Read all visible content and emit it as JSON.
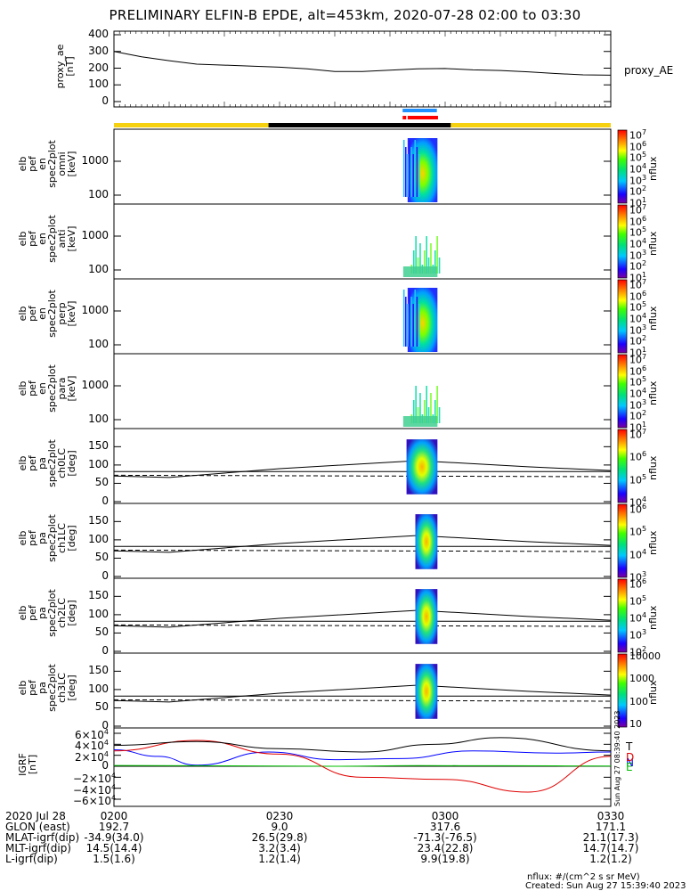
{
  "title": "PRELIMINARY ELFIN-B EPDE, alt=453km, 2020-07-28 02:00 to 03:30",
  "panels": [
    {
      "ylabel": "proxy_ae\n[nT]",
      "right_label": "proxy_AE",
      "ticks": [
        "400",
        "300",
        "200",
        "100",
        "0"
      ]
    },
    {
      "ylabel": "elb\npef\nen\nspec2plot\nomni\n[keV]",
      "ticks": [
        "1000",
        "100"
      ],
      "cbar_label": "nflux",
      "cbar_ticks": [
        "10^7",
        "10^6",
        "10^5",
        "10^4",
        "10^3",
        "10^2",
        "10^1"
      ]
    },
    {
      "ylabel": "elb\npef\nen\nspec2plot\nanti\n[keV]",
      "ticks": [
        "1000",
        "100"
      ],
      "cbar_label": "nflux",
      "cbar_ticks": [
        "10^7",
        "10^6",
        "10^5",
        "10^4",
        "10^3",
        "10^2",
        "10^1"
      ]
    },
    {
      "ylabel": "elb\npef\nen\nspec2plot\nperp\n[keV]",
      "ticks": [
        "1000",
        "100"
      ],
      "cbar_label": "nflux",
      "cbar_ticks": [
        "10^7",
        "10^6",
        "10^5",
        "10^4",
        "10^3",
        "10^2",
        "10^1"
      ]
    },
    {
      "ylabel": "elb\npef\nen\nspec2plot\npara\n[keV]",
      "ticks": [
        "1000",
        "100"
      ],
      "cbar_label": "nflux",
      "cbar_ticks": [
        "10^7",
        "10^6",
        "10^5",
        "10^4",
        "10^3",
        "10^2",
        "10^1"
      ]
    },
    {
      "ylabel": "elb\npef\npa\nspec2plot\nch0LC\n[deg]",
      "ticks": [
        "150",
        "100",
        "50",
        "0"
      ],
      "cbar_label": "nflux",
      "cbar_ticks": [
        "10^7",
        "10^6",
        "10^5",
        "10^4"
      ]
    },
    {
      "ylabel": "elb\npef\npa\nspec2plot\nch1LC\n[deg]",
      "ticks": [
        "150",
        "100",
        "50",
        "0"
      ],
      "cbar_label": "nflux",
      "cbar_ticks": [
        "10^6",
        "10^5",
        "10^4",
        "10^3"
      ]
    },
    {
      "ylabel": "elb\npef\npa\nspec2plot\nch2LC\n[deg]",
      "ticks": [
        "150",
        "100",
        "50",
        "0"
      ],
      "cbar_label": "nflux",
      "cbar_ticks": [
        "10^6",
        "10^5",
        "10^4",
        "10^3",
        "10^2"
      ]
    },
    {
      "ylabel": "elb\npef\npa\nspec2plot\nch3LC\n[deg]",
      "ticks": [
        "150",
        "100",
        "50",
        "0"
      ],
      "cbar_label": "nflux",
      "cbar_ticks": [
        "10000",
        "1000",
        "100",
        "10"
      ]
    },
    {
      "ylabel": "IGRF\n[nT]",
      "ticks": [
        "6×10^4",
        "4×10^4",
        "2×10^4",
        "0",
        "−2×10^4",
        "−4×10^4",
        "−6×10^4"
      ],
      "legend": [
        "N",
        "E",
        "D",
        "T"
      ],
      "stamp": "Sun Aug 27 08:39:40 2023"
    }
  ],
  "orbit_table": {
    "rows": [
      {
        "label": "2020 Jul 28",
        "values": [
          "0200",
          "0230",
          "0300",
          "0330"
        ]
      },
      {
        "label": "GLON (east)",
        "values": [
          "192.7",
          "9.0",
          "317.6",
          "171.1"
        ]
      },
      {
        "label": "MLAT-igrf(dip)",
        "values": [
          "-34.9(34.0)",
          "26.5(29.8)",
          "-71.3(-76.5)",
          "21.1(17.3)"
        ]
      },
      {
        "label": "MLT-igrf(dip)",
        "values": [
          "14.5(14.4)",
          "3.2(3.4)",
          "23.4(22.8)",
          "14.7(14.7)"
        ]
      },
      {
        "label": "L-igrf(dip)",
        "values": [
          "1.5(1.6)",
          "1.2(1.4)",
          "9.9(19.8)",
          "1.2(1.2)"
        ]
      }
    ]
  },
  "footer": {
    "units": "nflux: #/(cm^2 s sr MeV)",
    "created": "Created: Sun Aug 27 15:39:40 2023"
  },
  "chart_data": {
    "type": "line",
    "x_range": [
      "02:00",
      "03:30"
    ],
    "x_ticks": [
      "0200",
      "0230",
      "0300",
      "0330"
    ],
    "series": [
      {
        "name": "proxy_AE",
        "x_min": [
          0,
          5,
          10,
          15,
          20,
          25,
          30,
          35,
          40,
          45,
          50,
          55,
          60,
          65,
          70,
          75,
          80,
          85,
          90
        ],
        "values": [
          300,
          268,
          245,
          224,
          218,
          212,
          206,
          196,
          180,
          180,
          188,
          196,
          198,
          190,
          186,
          178,
          168,
          160,
          158
        ]
      }
    ],
    "proxy_ae_ylim": [
      0,
      400
    ],
    "energy_ylim_keV": [
      60,
      6000
    ],
    "pitch_angle_ylim_deg": [
      0,
      180
    ],
    "igrf_ylim_nT": [
      -60000,
      60000
    ],
    "igrf_series": [
      {
        "name": "N",
        "color": "#0000ff"
      },
      {
        "name": "E",
        "color": "#00c000"
      },
      {
        "name": "D",
        "color": "#e00000"
      },
      {
        "name": "T",
        "color": "#000000"
      }
    ],
    "colors": {
      "day": "#f5d10f",
      "night": "#000000",
      "blue_bar": "#1e90ff",
      "red_bar": "#ff0000"
    }
  }
}
